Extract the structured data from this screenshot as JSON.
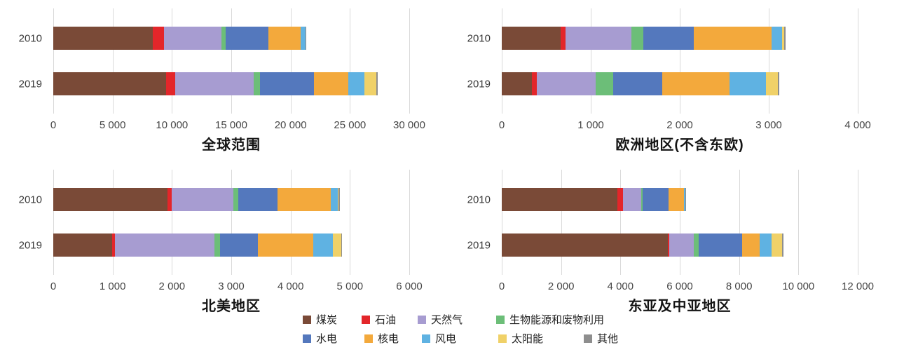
{
  "colors": {
    "coal": "#7A4A37",
    "oil": "#E3262A",
    "natural-gas": "#A79CD1",
    "bioenergy-waste": "#6CBE78",
    "hydro": "#5478BD",
    "nuclear": "#F3A93C",
    "wind": "#5FB2E2",
    "solar": "#F0D168",
    "other": "#8E8E8E",
    "gridline": "#d9d9d9"
  },
  "legend": {
    "rows": [
      [
        {
          "key": "coal",
          "label": "煤炭"
        },
        {
          "key": "oil",
          "label": "石油"
        },
        {
          "key": "natural-gas",
          "label": "天然气"
        },
        {
          "key": "bioenergy-waste",
          "label": "生物能源和废物利用"
        }
      ],
      [
        {
          "key": "hydro",
          "label": "水电"
        },
        {
          "key": "nuclear",
          "label": "核电"
        },
        {
          "key": "wind",
          "label": "风电"
        },
        {
          "key": "solar",
          "label": "太阳能"
        },
        {
          "key": "other",
          "label": "其他"
        }
      ]
    ]
  },
  "chart_data": [
    {
      "type": "bar",
      "stacked": true,
      "orientation": "horizontal",
      "title": "全球范围",
      "categories": [
        "2010",
        "2019"
      ],
      "xlim": [
        0,
        30000
      ],
      "grid": true,
      "ticks": [
        {
          "value": 0,
          "label": "0"
        },
        {
          "value": 5000,
          "label": "5 000"
        },
        {
          "value": 10000,
          "label": "10 000"
        },
        {
          "value": 15000,
          "label": "15 000"
        },
        {
          "value": 20000,
          "label": "20 000"
        },
        {
          "value": 25000,
          "label": "25 000"
        },
        {
          "value": 30000,
          "label": "30 000"
        }
      ],
      "series": [
        {
          "key": "coal",
          "name": "煤炭",
          "values": [
            8400,
            9500
          ]
        },
        {
          "key": "oil",
          "name": "石油",
          "values": [
            950,
            800
          ]
        },
        {
          "key": "natural-gas",
          "name": "天然气",
          "values": [
            4850,
            6600
          ]
        },
        {
          "key": "bioenergy-waste",
          "name": "生物能源和废物利用",
          "values": [
            350,
            500
          ]
        },
        {
          "key": "hydro",
          "name": "水电",
          "values": [
            3600,
            4600
          ]
        },
        {
          "key": "nuclear",
          "name": "核电",
          "values": [
            2700,
            2850
          ]
        },
        {
          "key": "wind",
          "name": "风电",
          "values": [
            400,
            1350
          ]
        },
        {
          "key": "solar",
          "name": "太阳能",
          "values": [
            30,
            1000
          ]
        },
        {
          "key": "other",
          "name": "其他",
          "values": [
            60,
            150
          ]
        }
      ]
    },
    {
      "type": "bar",
      "stacked": true,
      "orientation": "horizontal",
      "title": "欧洲地区(不含东欧)",
      "categories": [
        "2010",
        "2019"
      ],
      "xlim": [
        0,
        4000
      ],
      "grid": true,
      "ticks": [
        {
          "value": 0,
          "label": "0"
        },
        {
          "value": 1000,
          "label": "1 000"
        },
        {
          "value": 2000,
          "label": "2 000"
        },
        {
          "value": 3000,
          "label": "3 000"
        },
        {
          "value": 4000,
          "label": "4 000"
        }
      ],
      "series": [
        {
          "key": "coal",
          "name": "煤炭",
          "values": [
            660,
            340
          ]
        },
        {
          "key": "oil",
          "name": "石油",
          "values": [
            60,
            55
          ]
        },
        {
          "key": "natural-gas",
          "name": "天然气",
          "values": [
            740,
            660
          ]
        },
        {
          "key": "bioenergy-waste",
          "name": "生物能源和废物利用",
          "values": [
            130,
            200
          ]
        },
        {
          "key": "hydro",
          "name": "水电",
          "values": [
            570,
            550
          ]
        },
        {
          "key": "nuclear",
          "name": "核电",
          "values": [
            870,
            755
          ]
        },
        {
          "key": "wind",
          "name": "风电",
          "values": [
            120,
            410
          ]
        },
        {
          "key": "solar",
          "name": "太阳能",
          "values": [
            25,
            130
          ]
        },
        {
          "key": "other",
          "name": "其他",
          "values": [
            15,
            20
          ]
        }
      ]
    },
    {
      "type": "bar",
      "stacked": true,
      "orientation": "horizontal",
      "title": "北美地区",
      "categories": [
        "2010",
        "2019"
      ],
      "xlim": [
        0,
        6000
      ],
      "grid": true,
      "ticks": [
        {
          "value": 0,
          "label": "0"
        },
        {
          "value": 1000,
          "label": "1 000"
        },
        {
          "value": 2000,
          "label": "2 000"
        },
        {
          "value": 3000,
          "label": "3 000"
        },
        {
          "value": 4000,
          "label": "4 000"
        },
        {
          "value": 5000,
          "label": "5 000"
        },
        {
          "value": 6000,
          "label": "6 000"
        }
      ],
      "series": [
        {
          "key": "coal",
          "name": "煤炭",
          "values": [
            1930,
            990
          ]
        },
        {
          "key": "oil",
          "name": "石油",
          "values": [
            70,
            50
          ]
        },
        {
          "key": "natural-gas",
          "name": "天然气",
          "values": [
            1040,
            1680
          ]
        },
        {
          "key": "bioenergy-waste",
          "name": "生物能源和废物利用",
          "values": [
            80,
            90
          ]
        },
        {
          "key": "hydro",
          "name": "水电",
          "values": [
            655,
            640
          ]
        },
        {
          "key": "nuclear",
          "name": "核电",
          "values": [
            905,
            930
          ]
        },
        {
          "key": "wind",
          "name": "风电",
          "values": [
            120,
            330
          ]
        },
        {
          "key": "solar",
          "name": "太阳能",
          "values": [
            5,
            140
          ]
        },
        {
          "key": "other",
          "name": "其他",
          "values": [
            25,
            20
          ]
        }
      ]
    },
    {
      "type": "bar",
      "stacked": true,
      "orientation": "horizontal",
      "title": "东亚及中亚地区",
      "categories": [
        "2010",
        "2019"
      ],
      "xlim": [
        0,
        12000
      ],
      "grid": true,
      "ticks": [
        {
          "value": 0,
          "label": "0"
        },
        {
          "value": 2000,
          "label": "2 000"
        },
        {
          "value": 4000,
          "label": "4 000"
        },
        {
          "value": 6000,
          "label": "6 000"
        },
        {
          "value": 8000,
          "label": "8 000"
        },
        {
          "value": 10000,
          "label": "10 000"
        },
        {
          "value": 12000,
          "label": "12 000"
        }
      ],
      "series": [
        {
          "key": "coal",
          "name": "煤炭",
          "values": [
            3900,
            5590
          ]
        },
        {
          "key": "oil",
          "name": "石油",
          "values": [
            190,
            60
          ]
        },
        {
          "key": "natural-gas",
          "name": "天然气",
          "values": [
            620,
            830
          ]
        },
        {
          "key": "bioenergy-waste",
          "name": "生物能源和废物利用",
          "values": [
            50,
            170
          ]
        },
        {
          "key": "hydro",
          "name": "水电",
          "values": [
            860,
            1450
          ]
        },
        {
          "key": "nuclear",
          "name": "核电",
          "values": [
            520,
            600
          ]
        },
        {
          "key": "wind",
          "name": "风电",
          "values": [
            50,
            400
          ]
        },
        {
          "key": "solar",
          "name": "太阳能",
          "values": [
            5,
            360
          ]
        },
        {
          "key": "other",
          "name": "其他",
          "values": [
            20,
            40
          ]
        }
      ]
    }
  ]
}
